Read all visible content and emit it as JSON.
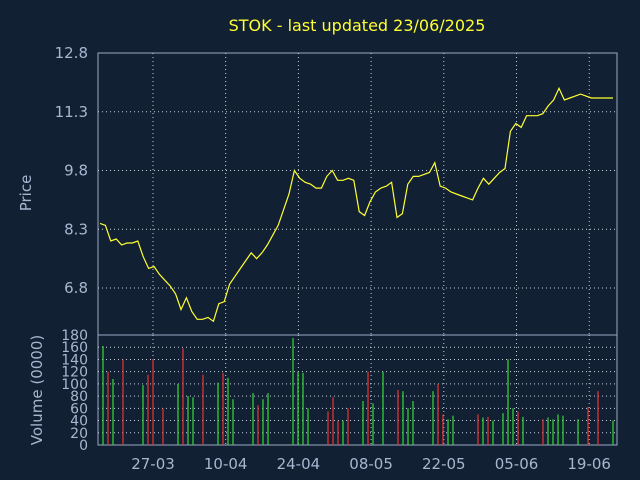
{
  "chart_data": [
    {
      "type": "line",
      "title": "STOK - last updated 23/06/2025",
      "ylabel": "Price",
      "ylim": [
        5.6,
        12.8
      ],
      "yticks": [
        "12.8",
        "11.3",
        "9.8",
        "8.3",
        "6.8"
      ],
      "xtick_labels": [
        "27-03",
        "10-04",
        "24-04",
        "08-05",
        "22-05",
        "05-06",
        "19-06"
      ],
      "grid": true,
      "colors": {
        "background": "#122033",
        "line": "#ffff33",
        "frame": "#9aa9c4",
        "title": "#ffff33",
        "text": "#a8b6d0"
      },
      "series": [
        {
          "values": [
            8.45,
            8.4,
            8.0,
            8.05,
            7.9,
            7.95,
            7.95,
            8.0,
            7.6,
            7.3,
            7.35,
            7.15,
            7.0,
            6.85,
            6.65,
            6.25,
            6.55,
            6.2,
            6.0,
            6.0,
            6.05,
            5.95,
            6.4,
            6.45,
            6.9,
            7.1,
            7.3,
            7.5,
            7.7,
            7.55,
            7.7,
            7.9,
            8.15,
            8.4,
            8.8,
            9.2,
            9.8,
            9.6,
            9.5,
            9.45,
            9.35,
            9.35,
            9.65,
            9.8,
            9.55,
            9.55,
            9.6,
            9.55,
            8.75,
            8.65,
            9.0,
            9.25,
            9.35,
            9.4,
            9.5,
            8.6,
            8.7,
            9.45,
            9.65,
            9.65,
            9.7,
            9.75,
            10.0,
            9.4,
            9.35,
            9.25,
            9.2,
            9.15,
            9.1,
            9.05,
            9.35,
            9.6,
            9.45,
            9.6,
            9.75,
            9.85,
            10.8,
            11.0,
            10.9,
            11.2,
            11.2,
            11.2,
            11.25,
            11.45,
            11.6,
            11.9,
            11.6,
            11.65,
            11.7,
            11.75,
            11.7,
            11.65,
            11.65,
            11.65,
            11.65,
            11.65
          ]
        }
      ]
    },
    {
      "type": "bar",
      "ylabel": "Volume (0000)",
      "ylim": [
        0,
        180
      ],
      "yticks": [
        "180",
        "160",
        "140",
        "120",
        "100",
        "80",
        "60",
        "40",
        "20",
        "0"
      ],
      "grid": true,
      "colors": {
        "up": "#33dd33",
        "down": "#ee3333"
      },
      "values": [
        162,
        120,
        108,
        0,
        140,
        0,
        0,
        0,
        98,
        115,
        140,
        0,
        60,
        0,
        0,
        100,
        158,
        80,
        78,
        0,
        115,
        0,
        0,
        102,
        118,
        110,
        75,
        0,
        0,
        0,
        85,
        65,
        75,
        85,
        0,
        0,
        0,
        0,
        175,
        120,
        118,
        60,
        0,
        0,
        0,
        55,
        78,
        40,
        40,
        60,
        0,
        0,
        72,
        120,
        68,
        0,
        120,
        0,
        0,
        90,
        88,
        60,
        72,
        0,
        0,
        0,
        88,
        100,
        50,
        42,
        48,
        0,
        0,
        0,
        0,
        50,
        45,
        46,
        40,
        0,
        52,
        140,
        60,
        55,
        46,
        0,
        0,
        0,
        42,
        45,
        42,
        50,
        48,
        0,
        0,
        42,
        0,
        62,
        0,
        88,
        0,
        0,
        40
      ],
      "up": [
        true,
        false,
        true,
        true,
        false,
        true,
        true,
        true,
        true,
        false,
        false,
        true,
        false,
        true,
        true,
        true,
        false,
        true,
        true,
        true,
        false,
        true,
        true,
        true,
        false,
        true,
        true,
        true,
        true,
        true,
        true,
        false,
        true,
        true,
        true,
        true,
        true,
        true,
        true,
        true,
        true,
        true,
        true,
        true,
        true,
        false,
        false,
        false,
        true,
        false,
        true,
        true,
        true,
        false,
        true,
        true,
        true,
        true,
        true,
        false,
        true,
        true,
        true,
        true,
        true,
        true,
        true,
        false,
        false,
        true,
        true,
        true,
        true,
        true,
        true,
        false,
        true,
        false,
        true,
        true,
        true,
        true,
        true,
        false,
        true,
        true,
        true,
        true,
        false,
        true,
        true,
        true,
        true,
        true,
        true,
        true,
        true,
        false,
        true,
        false,
        true,
        true,
        true
      ]
    }
  ]
}
